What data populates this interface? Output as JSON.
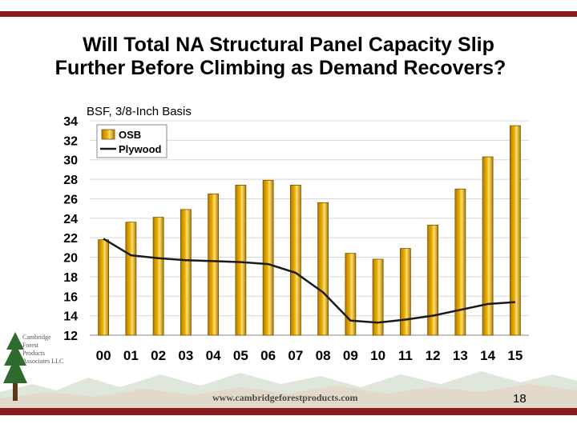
{
  "title_line1": "Will Total NA Structural Panel Capacity Slip",
  "title_line2": "Further Before Climbing as Demand Recovers?",
  "unit_label": "BSF, 3/8-Inch Basis",
  "footer_url": "www.cambridgeforestproducts.com",
  "page_number": "18",
  "logo": {
    "line1": "Cambridge",
    "line2": "Forest",
    "line3": "Products",
    "line4": "Associates LLC"
  },
  "colors": {
    "accent_bar": "#8b1a1a",
    "osb_fill": "#f2b400",
    "plywood_line": "#1a1a1a"
  },
  "chart_data": {
    "type": "bar",
    "title": "",
    "xlabel": "",
    "ylabel": "BSF, 3/8-Inch Basis",
    "ylim": [
      12,
      34
    ],
    "yticks": [
      12,
      14,
      16,
      18,
      20,
      22,
      24,
      26,
      28,
      30,
      32,
      34
    ],
    "categories": [
      "00",
      "01",
      "02",
      "03",
      "04",
      "05",
      "06",
      "07",
      "08",
      "09",
      "10",
      "11",
      "12",
      "13",
      "14",
      "15"
    ],
    "series": [
      {
        "name": "OSB",
        "kind": "bar",
        "values": [
          21.8,
          23.6,
          24.1,
          24.9,
          26.5,
          27.4,
          27.9,
          27.4,
          25.6,
          20.4,
          19.8,
          20.9,
          23.3,
          27.0,
          30.3,
          33.5
        ]
      },
      {
        "name": "Plywood",
        "kind": "line",
        "values": [
          21.9,
          20.2,
          19.9,
          19.7,
          19.6,
          19.5,
          19.3,
          18.4,
          16.4,
          13.5,
          13.3,
          13.6,
          14.0,
          14.6,
          15.2,
          15.4
        ]
      }
    ],
    "legend": "top-left"
  }
}
